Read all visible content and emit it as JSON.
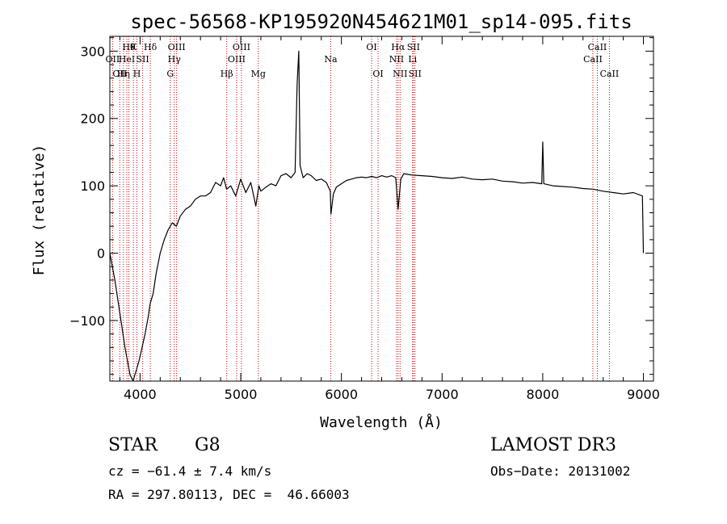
{
  "chart_data": {
    "type": "line",
    "title": "spec-56568-KP195920N454621M01_sp14-095.fits",
    "xlabel": "Wavelength (Å)",
    "ylabel": "Flux (relative)",
    "xlim": [
      3700,
      9100
    ],
    "ylim": [
      -190,
      322
    ],
    "xticks": [
      4000,
      5000,
      6000,
      7000,
      8000,
      9000
    ],
    "yticks": [
      -100,
      0,
      100,
      200,
      300
    ],
    "line_color": "#000000",
    "marker_color": "#cc0000",
    "series": [
      {
        "x": [
          3700,
          3750,
          3800,
          3850,
          3900,
          3930,
          3960,
          3990,
          4020,
          4050,
          4080,
          4100,
          4130,
          4160,
          4200,
          4240,
          4280,
          4320,
          4360,
          4400,
          4450,
          4500,
          4550,
          4600,
          4650,
          4700,
          4750,
          4800,
          4830,
          4860,
          4900,
          4950,
          5000,
          5050,
          5100,
          5150,
          5180,
          5200,
          5250,
          5300,
          5350,
          5400,
          5450,
          5500,
          5540,
          5560,
          5577,
          5590,
          5620,
          5660,
          5700,
          5750,
          5800,
          5850,
          5890,
          5896,
          5920,
          5950,
          6000,
          6050,
          6100,
          6150,
          6200,
          6250,
          6300,
          6350,
          6400,
          6450,
          6500,
          6540,
          6563,
          6590,
          6620,
          6700,
          6800,
          6900,
          7000,
          7100,
          7200,
          7300,
          7400,
          7500,
          7600,
          7700,
          7800,
          7900,
          7990,
          8000,
          8010,
          8100,
          8200,
          8300,
          8400,
          8500,
          8600,
          8700,
          8800,
          8900,
          8990,
          9000
        ],
        "y": [
          0,
          -40,
          -90,
          -140,
          -180,
          -190,
          -175,
          -160,
          -140,
          -120,
          -95,
          -75,
          -60,
          -30,
          0,
          20,
          35,
          45,
          40,
          55,
          65,
          70,
          80,
          85,
          85,
          90,
          105,
          100,
          112,
          95,
          100,
          85,
          110,
          90,
          105,
          70,
          100,
          92,
          98,
          103,
          100,
          115,
          118,
          112,
          120,
          250,
          300,
          130,
          112,
          118,
          115,
          108,
          110,
          105,
          92,
          58,
          88,
          98,
          103,
          108,
          110,
          112,
          113,
          112,
          114,
          112,
          115,
          113,
          115,
          112,
          65,
          110,
          118,
          116,
          115,
          114,
          112,
          111,
          113,
          110,
          109,
          110,
          107,
          106,
          104,
          105,
          103,
          165,
          103,
          100,
          99,
          98,
          96,
          95,
          92,
          90,
          88,
          90,
          85,
          0
        ]
      }
    ],
    "line_markers": [
      {
        "wl": 3727,
        "label": "OII",
        "row": 2
      },
      {
        "wl": 3798,
        "label": "OII",
        "row": 3
      },
      {
        "wl": 3835,
        "label": "Hη",
        "row": 3
      },
      {
        "wl": 3869,
        "label": "HeI",
        "row": 2
      },
      {
        "wl": 3889,
        "label": "Hθ",
        "row": 1
      },
      {
        "wl": 3934,
        "label": "K",
        "row": 1
      },
      {
        "wl": 3969,
        "label": "H",
        "row": 3
      },
      {
        "wl": 4026,
        "label": "SII",
        "row": 2
      },
      {
        "wl": 4102,
        "label": "Hδ",
        "row": 1
      },
      {
        "wl": 4300,
        "label": "G",
        "row": 3
      },
      {
        "wl": 4340,
        "label": "Hγ",
        "row": 2
      },
      {
        "wl": 4363,
        "label": "OIII",
        "row": 1
      },
      {
        "wl": 4861,
        "label": "Hβ",
        "row": 3
      },
      {
        "wl": 4959,
        "label": "OIII",
        "row": 2
      },
      {
        "wl": 5007,
        "label": "OIII",
        "row": 1
      },
      {
        "wl": 5175,
        "label": "Mg",
        "row": 3
      },
      {
        "wl": 5894,
        "label": "Na",
        "row": 2
      },
      {
        "wl": 6300,
        "label": "OI",
        "row": 1
      },
      {
        "wl": 6364,
        "label": "OI",
        "row": 3
      },
      {
        "wl": 6548,
        "label": "NII",
        "row": 2
      },
      {
        "wl": 6563,
        "label": "Hα",
        "row": 1
      },
      {
        "wl": 6583,
        "label": "NII",
        "row": 3
      },
      {
        "wl": 6707,
        "label": "Li",
        "row": 2
      },
      {
        "wl": 6716,
        "label": "SII",
        "row": 1
      },
      {
        "wl": 6731,
        "label": "SII",
        "row": 3
      },
      {
        "wl": 8498,
        "label": "CaII",
        "row": 2
      },
      {
        "wl": 8542,
        "label": "CaII",
        "row": 1
      },
      {
        "wl": 8662,
        "label": "CaII",
        "row": 3
      }
    ]
  },
  "footer": {
    "object_type": "STAR",
    "subclass": "G8",
    "survey": "LAMOST DR3",
    "cz": "cz = −61.4 ± 7.4 km/s",
    "obs_date": "Obs−Date: 20131002",
    "coords": "RA = 297.80113, DEC =  46.66003"
  }
}
